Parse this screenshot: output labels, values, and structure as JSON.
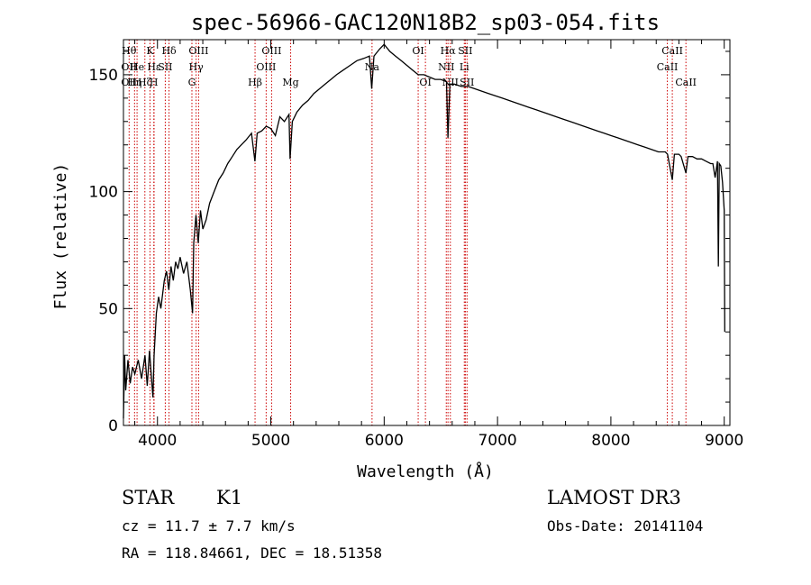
{
  "chart_data": {
    "type": "line",
    "title": "spec-56966-GAC120N18B2_sp03-054.fits",
    "xlabel": "Wavelength (Å)",
    "ylabel": "Flux (relative)",
    "xlim": [
      3700,
      9050
    ],
    "ylim": [
      0,
      165
    ],
    "xticks": [
      4000,
      5000,
      6000,
      7000,
      8000,
      9000
    ],
    "yticks": [
      0,
      50,
      100,
      150
    ],
    "grid": false,
    "series": [
      {
        "points": [
          [
            3700,
            3
          ],
          [
            3710,
            30
          ],
          [
            3720,
            15
          ],
          [
            3740,
            28
          ],
          [
            3760,
            18
          ],
          [
            3780,
            25
          ],
          [
            3800,
            22
          ],
          [
            3830,
            28
          ],
          [
            3860,
            20
          ],
          [
            3890,
            30
          ],
          [
            3910,
            17
          ],
          [
            3930,
            32
          ],
          [
            3960,
            12
          ],
          [
            3970,
            30
          ],
          [
            3990,
            48
          ],
          [
            4010,
            55
          ],
          [
            4030,
            50
          ],
          [
            4060,
            62
          ],
          [
            4080,
            66
          ],
          [
            4100,
            58
          ],
          [
            4120,
            68
          ],
          [
            4140,
            62
          ],
          [
            4160,
            70
          ],
          [
            4180,
            67
          ],
          [
            4200,
            72
          ],
          [
            4230,
            65
          ],
          [
            4260,
            70
          ],
          [
            4290,
            58
          ],
          [
            4310,
            48
          ],
          [
            4320,
            78
          ],
          [
            4340,
            90
          ],
          [
            4360,
            78
          ],
          [
            4380,
            92
          ],
          [
            4400,
            84
          ],
          [
            4430,
            88
          ],
          [
            4460,
            95
          ],
          [
            4500,
            100
          ],
          [
            4540,
            105
          ],
          [
            4580,
            108
          ],
          [
            4620,
            112
          ],
          [
            4660,
            115
          ],
          [
            4700,
            118
          ],
          [
            4740,
            120
          ],
          [
            4780,
            122
          ],
          [
            4830,
            125
          ],
          [
            4860,
            113
          ],
          [
            4880,
            125
          ],
          [
            4920,
            126
          ],
          [
            4960,
            128
          ],
          [
            5000,
            127
          ],
          [
            5040,
            124
          ],
          [
            5080,
            132
          ],
          [
            5120,
            130
          ],
          [
            5160,
            133
          ],
          [
            5170,
            114
          ],
          [
            5190,
            130
          ],
          [
            5230,
            134
          ],
          [
            5280,
            137
          ],
          [
            5330,
            139
          ],
          [
            5380,
            142
          ],
          [
            5430,
            144
          ],
          [
            5480,
            146
          ],
          [
            5530,
            148
          ],
          [
            5580,
            150
          ],
          [
            5640,
            152
          ],
          [
            5700,
            154
          ],
          [
            5760,
            156
          ],
          [
            5820,
            157
          ],
          [
            5870,
            158
          ],
          [
            5890,
            144
          ],
          [
            5910,
            158
          ],
          [
            5960,
            161
          ],
          [
            6000,
            163
          ],
          [
            6050,
            160
          ],
          [
            6100,
            158
          ],
          [
            6150,
            156
          ],
          [
            6200,
            154
          ],
          [
            6250,
            152
          ],
          [
            6300,
            150
          ],
          [
            6350,
            150
          ],
          [
            6400,
            149
          ],
          [
            6450,
            148
          ],
          [
            6500,
            148
          ],
          [
            6550,
            147
          ],
          [
            6563,
            123
          ],
          [
            6580,
            146
          ],
          [
            6620,
            146
          ],
          [
            6680,
            145
          ],
          [
            6740,
            145
          ],
          [
            6800,
            144
          ],
          [
            6860,
            143
          ],
          [
            6920,
            142
          ],
          [
            6980,
            141
          ],
          [
            7040,
            140
          ],
          [
            7100,
            139
          ],
          [
            7160,
            138
          ],
          [
            7220,
            137
          ],
          [
            7280,
            136
          ],
          [
            7340,
            135
          ],
          [
            7400,
            134
          ],
          [
            7460,
            133
          ],
          [
            7520,
            132
          ],
          [
            7580,
            131
          ],
          [
            7640,
            130
          ],
          [
            7700,
            129
          ],
          [
            7760,
            128
          ],
          [
            7820,
            127
          ],
          [
            7880,
            126
          ],
          [
            7940,
            125
          ],
          [
            8000,
            124
          ],
          [
            8060,
            123
          ],
          [
            8120,
            122
          ],
          [
            8180,
            121
          ],
          [
            8240,
            120
          ],
          [
            8300,
            119
          ],
          [
            8360,
            118
          ],
          [
            8420,
            117
          ],
          [
            8480,
            117
          ],
          [
            8500,
            116
          ],
          [
            8542,
            105
          ],
          [
            8560,
            116
          ],
          [
            8600,
            116
          ],
          [
            8620,
            115
          ],
          [
            8662,
            108
          ],
          [
            8680,
            115
          ],
          [
            8720,
            115
          ],
          [
            8760,
            114
          ],
          [
            8800,
            114
          ],
          [
            8840,
            113
          ],
          [
            8880,
            112
          ],
          [
            8900,
            112
          ],
          [
            8920,
            106
          ],
          [
            8940,
            113
          ],
          [
            8948,
            68
          ],
          [
            8956,
            112
          ],
          [
            8970,
            111
          ],
          [
            8985,
            104
          ],
          [
            9000,
            92
          ],
          [
            9005,
            40
          ]
        ]
      }
    ],
    "lines": [
      {
        "x": 3750,
        "rows": [
          {
            "label": "Hθ",
            "row": 0
          },
          {
            "label": "OII",
            "row": 1
          },
          {
            "label": "OII",
            "row": 2
          }
        ]
      },
      {
        "x": 3798,
        "rows": [
          {
            "label": "Hη",
            "row": 2
          }
        ]
      },
      {
        "x": 3820,
        "rows": [
          {
            "label": "He",
            "row": 1
          }
        ]
      },
      {
        "x": 3889,
        "rows": [
          {
            "label": "Hζ",
            "row": 2
          }
        ]
      },
      {
        "x": 3934,
        "rows": [
          {
            "label": "K",
            "row": 0
          }
        ]
      },
      {
        "x": 3968,
        "rows": [
          {
            "label": "H",
            "row": 2
          }
        ]
      },
      {
        "x": 3970,
        "rows": [
          {
            "label": "Hε",
            "row": 1
          }
        ]
      },
      {
        "x": 4069,
        "rows": [
          {
            "label": "SII",
            "row": 1
          }
        ]
      },
      {
        "x": 4102,
        "rows": [
          {
            "label": "Hδ",
            "row": 0
          }
        ]
      },
      {
        "x": 4304,
        "rows": [
          {
            "label": "G",
            "row": 2
          }
        ]
      },
      {
        "x": 4341,
        "rows": [
          {
            "label": "Hγ",
            "row": 1
          }
        ]
      },
      {
        "x": 4363,
        "rows": [
          {
            "label": "OIII",
            "row": 0
          }
        ]
      },
      {
        "x": 4861,
        "rows": [
          {
            "label": "Hβ",
            "row": 2
          }
        ]
      },
      {
        "x": 4959,
        "rows": [
          {
            "label": "OIII",
            "row": 1
          }
        ]
      },
      {
        "x": 5007,
        "rows": [
          {
            "label": "OIII",
            "row": 0
          }
        ]
      },
      {
        "x": 5175,
        "rows": [
          {
            "label": "Mg",
            "row": 2
          }
        ]
      },
      {
        "x": 5893,
        "rows": [
          {
            "label": "Na",
            "row": 1
          }
        ]
      },
      {
        "x": 6300,
        "rows": [
          {
            "label": "OI",
            "row": 0
          }
        ]
      },
      {
        "x": 6364,
        "rows": [
          {
            "label": "OI",
            "row": 2
          }
        ]
      },
      {
        "x": 6548,
        "rows": [
          {
            "label": "NII",
            "row": 1
          }
        ]
      },
      {
        "x": 6563,
        "rows": [
          {
            "label": "Hα",
            "row": 0
          }
        ]
      },
      {
        "x": 6584,
        "rows": [
          {
            "label": "NII",
            "row": 2
          }
        ]
      },
      {
        "x": 6707,
        "rows": [
          {
            "label": "Li",
            "row": 1
          }
        ]
      },
      {
        "x": 6716,
        "rows": [
          {
            "label": "SII",
            "row": 0
          }
        ]
      },
      {
        "x": 6731,
        "rows": [
          {
            "label": "SII",
            "row": 2
          }
        ]
      },
      {
        "x": 8498,
        "rows": [
          {
            "label": "CaII",
            "row": 1
          }
        ]
      },
      {
        "x": 8542,
        "rows": [
          {
            "label": "CaII",
            "row": 0
          }
        ]
      },
      {
        "x": 8662,
        "rows": [
          {
            "label": "CaII",
            "row": 2
          }
        ]
      }
    ]
  },
  "info": {
    "class": "STAR",
    "subclass": "K1",
    "survey": "LAMOST DR3",
    "cz": "cz = 11.7 ± 7.7 km/s",
    "obs_date": "Obs-Date: 20141104",
    "coords": "RA = 118.84661, DEC =  18.51358"
  },
  "colors": {
    "spectrum": "#000000",
    "line_markers": "#cc0000",
    "axes": "#000000"
  }
}
